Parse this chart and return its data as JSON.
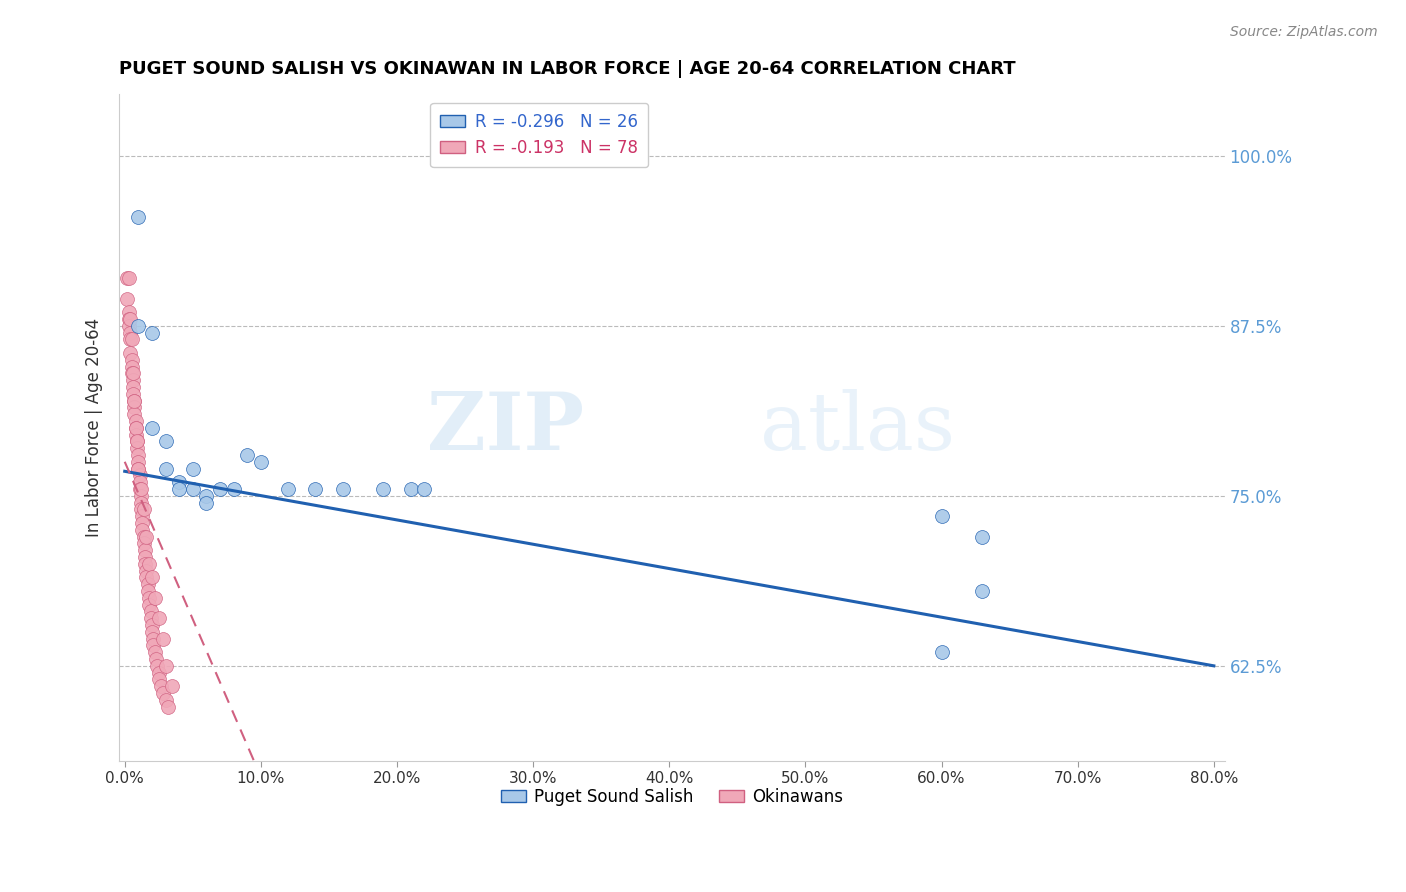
{
  "title": "PUGET SOUND SALISH VS OKINAWAN IN LABOR FORCE | AGE 20-64 CORRELATION CHART",
  "source": "Source: ZipAtlas.com",
  "ylabel": "In Labor Force | Age 20-64",
  "legend_label1": "Puget Sound Salish",
  "legend_label2": "Okinawans",
  "R1": -0.296,
  "N1": 26,
  "R2": -0.193,
  "N2": 78,
  "xlim": [
    -0.004,
    0.808
  ],
  "ylim": [
    0.555,
    1.045
  ],
  "xticks": [
    0.0,
    0.1,
    0.2,
    0.3,
    0.4,
    0.5,
    0.6,
    0.7,
    0.8
  ],
  "yticks": [
    0.625,
    0.75,
    0.875,
    1.0
  ],
  "color_blue": "#A8C8E8",
  "color_pink": "#F0A8B8",
  "trendline_blue": "#2060B0",
  "trendline_pink": "#D06080",
  "watermark_zip": "ZIP",
  "watermark_atlas": "atlas",
  "blue_x": [
    0.01,
    0.01,
    0.02,
    0.02,
    0.03,
    0.03,
    0.04,
    0.04,
    0.05,
    0.05,
    0.06,
    0.06,
    0.07,
    0.08,
    0.09,
    0.1,
    0.12,
    0.14,
    0.16,
    0.19,
    0.21,
    0.22,
    0.6,
    0.6,
    0.63,
    0.63
  ],
  "blue_y": [
    0.955,
    0.875,
    0.87,
    0.8,
    0.79,
    0.77,
    0.76,
    0.755,
    0.77,
    0.755,
    0.75,
    0.745,
    0.755,
    0.755,
    0.78,
    0.775,
    0.755,
    0.755,
    0.755,
    0.755,
    0.755,
    0.755,
    0.735,
    0.635,
    0.72,
    0.68
  ],
  "pink_x": [
    0.002,
    0.002,
    0.003,
    0.003,
    0.003,
    0.004,
    0.004,
    0.004,
    0.005,
    0.005,
    0.005,
    0.006,
    0.006,
    0.006,
    0.007,
    0.007,
    0.007,
    0.008,
    0.008,
    0.008,
    0.009,
    0.009,
    0.01,
    0.01,
    0.01,
    0.011,
    0.011,
    0.011,
    0.012,
    0.012,
    0.012,
    0.013,
    0.013,
    0.013,
    0.014,
    0.014,
    0.015,
    0.015,
    0.015,
    0.016,
    0.016,
    0.017,
    0.017,
    0.018,
    0.018,
    0.019,
    0.019,
    0.02,
    0.02,
    0.021,
    0.021,
    0.022,
    0.023,
    0.024,
    0.025,
    0.025,
    0.027,
    0.028,
    0.03,
    0.032,
    0.003,
    0.004,
    0.005,
    0.006,
    0.007,
    0.008,
    0.009,
    0.01,
    0.012,
    0.014,
    0.016,
    0.018,
    0.02,
    0.022,
    0.025,
    0.028,
    0.03,
    0.035
  ],
  "pink_y": [
    0.91,
    0.895,
    0.885,
    0.88,
    0.875,
    0.87,
    0.865,
    0.855,
    0.85,
    0.845,
    0.84,
    0.835,
    0.83,
    0.825,
    0.82,
    0.815,
    0.81,
    0.805,
    0.8,
    0.795,
    0.79,
    0.785,
    0.78,
    0.775,
    0.77,
    0.765,
    0.76,
    0.755,
    0.75,
    0.745,
    0.74,
    0.735,
    0.73,
    0.725,
    0.72,
    0.715,
    0.71,
    0.705,
    0.7,
    0.695,
    0.69,
    0.685,
    0.68,
    0.675,
    0.67,
    0.665,
    0.66,
    0.655,
    0.65,
    0.645,
    0.64,
    0.635,
    0.63,
    0.625,
    0.62,
    0.615,
    0.61,
    0.605,
    0.6,
    0.595,
    0.91,
    0.88,
    0.865,
    0.84,
    0.82,
    0.8,
    0.79,
    0.77,
    0.755,
    0.74,
    0.72,
    0.7,
    0.69,
    0.675,
    0.66,
    0.645,
    0.625,
    0.61
  ],
  "blue_trend_x": [
    0.0,
    0.8
  ],
  "blue_trend_y": [
    0.768,
    0.625
  ],
  "pink_trend_x": [
    0.0,
    0.095
  ],
  "pink_trend_y": [
    0.775,
    0.555
  ]
}
